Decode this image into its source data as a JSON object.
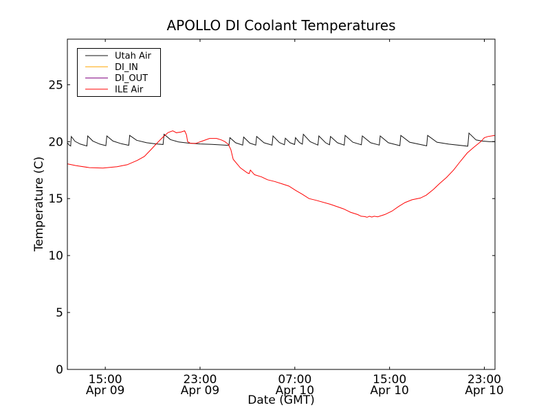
{
  "figure": {
    "background": "#ffffff",
    "axes_border_color": "#000000"
  },
  "chart_data": {
    "type": "line",
    "title": "APOLLO DI Coolant Temperatures",
    "xlabel": "Date (GMT)",
    "ylabel": "Temperature (C)",
    "grid": false,
    "legend_position": "upper left",
    "x_unit": "hours since Apr 09 00:00 GMT",
    "xlim": [
      11.8,
      47.9
    ],
    "ylim": [
      0,
      29
    ],
    "yticks": [
      0,
      5,
      10,
      15,
      20,
      25
    ],
    "xticks": [
      {
        "hour": 15,
        "time": "15:00",
        "date": "Apr 09"
      },
      {
        "hour": 23,
        "time": "23:00",
        "date": "Apr 09"
      },
      {
        "hour": 31,
        "time": "07:00",
        "date": "Apr 10"
      },
      {
        "hour": 39,
        "time": "15:00",
        "date": "Apr 10"
      },
      {
        "hour": 47,
        "time": "23:00",
        "date": "Apr 10"
      }
    ],
    "series": [
      {
        "name": "Utah Air",
        "color": "#111111",
        "points": [
          [
            11.8,
            19.9
          ],
          [
            11.95,
            19.7
          ],
          [
            12.08,
            19.62
          ],
          [
            12.13,
            20.45
          ],
          [
            12.45,
            20.02
          ],
          [
            12.9,
            19.78
          ],
          [
            13.45,
            19.62
          ],
          [
            13.52,
            20.5
          ],
          [
            13.95,
            20.05
          ],
          [
            14.55,
            19.78
          ],
          [
            15.05,
            19.65
          ],
          [
            15.13,
            20.5
          ],
          [
            15.65,
            20.05
          ],
          [
            16.35,
            19.82
          ],
          [
            16.98,
            19.68
          ],
          [
            17.06,
            20.55
          ],
          [
            17.65,
            20.12
          ],
          [
            18.5,
            19.9
          ],
          [
            19.3,
            19.8
          ],
          [
            19.88,
            19.75
          ],
          [
            19.96,
            20.65
          ],
          [
            20.5,
            20.18
          ],
          [
            21.2,
            19.97
          ],
          [
            22.0,
            19.87
          ],
          [
            23.0,
            19.8
          ],
          [
            24.0,
            19.76
          ],
          [
            25.0,
            19.7
          ],
          [
            25.44,
            19.67
          ],
          [
            25.52,
            20.35
          ],
          [
            26.0,
            19.9
          ],
          [
            26.6,
            19.7
          ],
          [
            26.68,
            20.4
          ],
          [
            27.2,
            19.87
          ],
          [
            27.7,
            19.7
          ],
          [
            27.78,
            20.45
          ],
          [
            28.4,
            19.9
          ],
          [
            29.08,
            19.7
          ],
          [
            29.16,
            20.5
          ],
          [
            29.7,
            19.92
          ],
          [
            30.12,
            19.73
          ],
          [
            30.2,
            20.3
          ],
          [
            30.6,
            19.9
          ],
          [
            30.98,
            19.75
          ],
          [
            31.06,
            20.35
          ],
          [
            31.4,
            19.92
          ],
          [
            31.64,
            19.78
          ],
          [
            31.72,
            20.65
          ],
          [
            32.3,
            20.0
          ],
          [
            32.95,
            19.7
          ],
          [
            33.03,
            20.5
          ],
          [
            33.6,
            19.9
          ],
          [
            33.93,
            19.73
          ],
          [
            34.01,
            20.45
          ],
          [
            34.6,
            19.9
          ],
          [
            35.17,
            19.7
          ],
          [
            35.25,
            20.55
          ],
          [
            35.9,
            19.95
          ],
          [
            36.62,
            19.72
          ],
          [
            36.7,
            20.5
          ],
          [
            37.4,
            19.9
          ],
          [
            38.13,
            19.7
          ],
          [
            38.21,
            20.5
          ],
          [
            38.9,
            19.9
          ],
          [
            39.87,
            19.65
          ],
          [
            39.95,
            20.55
          ],
          [
            40.7,
            19.95
          ],
          [
            42.13,
            19.63
          ],
          [
            42.21,
            20.55
          ],
          [
            43.0,
            19.95
          ],
          [
            44.0,
            19.78
          ],
          [
            45.6,
            19.6
          ],
          [
            45.7,
            20.75
          ],
          [
            46.3,
            20.15
          ],
          [
            46.8,
            20.05
          ],
          [
            47.4,
            20.0
          ],
          [
            47.87,
            20.0
          ]
        ]
      },
      {
        "name": "DI_IN",
        "color": "#ffa500",
        "points": []
      },
      {
        "name": "DI_OUT",
        "color": "#800080",
        "points": []
      },
      {
        "name": "ILE Air",
        "color": "#ff0000",
        "points": [
          [
            11.8,
            18.05
          ],
          [
            12.5,
            17.9
          ],
          [
            13.65,
            17.72
          ],
          [
            14.8,
            17.68
          ],
          [
            16.0,
            17.8
          ],
          [
            16.85,
            17.97
          ],
          [
            17.7,
            18.35
          ],
          [
            18.3,
            18.7
          ],
          [
            18.9,
            19.35
          ],
          [
            19.3,
            19.8
          ],
          [
            19.87,
            20.4
          ],
          [
            20.3,
            20.8
          ],
          [
            20.7,
            20.95
          ],
          [
            21.0,
            20.78
          ],
          [
            21.4,
            20.85
          ],
          [
            21.7,
            20.95
          ],
          [
            21.85,
            20.6
          ],
          [
            21.95,
            20.0
          ],
          [
            22.2,
            19.85
          ],
          [
            22.65,
            19.85
          ],
          [
            23.2,
            20.05
          ],
          [
            23.8,
            20.28
          ],
          [
            24.4,
            20.28
          ],
          [
            24.8,
            20.15
          ],
          [
            25.1,
            20.0
          ],
          [
            25.4,
            19.75
          ],
          [
            25.6,
            19.3
          ],
          [
            25.8,
            18.45
          ],
          [
            26.4,
            17.7
          ],
          [
            27.0,
            17.25
          ],
          [
            27.15,
            17.2
          ],
          [
            27.25,
            17.5
          ],
          [
            27.6,
            17.1
          ],
          [
            28.2,
            16.9
          ],
          [
            28.7,
            16.65
          ],
          [
            29.3,
            16.5
          ],
          [
            29.9,
            16.3
          ],
          [
            30.5,
            16.1
          ],
          [
            31.1,
            15.7
          ],
          [
            31.6,
            15.4
          ],
          [
            32.2,
            15.0
          ],
          [
            32.8,
            14.85
          ],
          [
            34.0,
            14.5
          ],
          [
            35.1,
            14.1
          ],
          [
            35.7,
            13.8
          ],
          [
            36.3,
            13.6
          ],
          [
            36.6,
            13.45
          ],
          [
            36.9,
            13.42
          ],
          [
            37.1,
            13.36
          ],
          [
            37.3,
            13.45
          ],
          [
            37.5,
            13.38
          ],
          [
            37.7,
            13.45
          ],
          [
            38.0,
            13.4
          ],
          [
            38.6,
            13.6
          ],
          [
            39.2,
            13.9
          ],
          [
            39.75,
            14.3
          ],
          [
            40.3,
            14.65
          ],
          [
            40.9,
            14.9
          ],
          [
            41.6,
            15.05
          ],
          [
            42.1,
            15.3
          ],
          [
            42.7,
            15.8
          ],
          [
            43.2,
            16.3
          ],
          [
            43.8,
            16.85
          ],
          [
            44.4,
            17.5
          ],
          [
            45.0,
            18.3
          ],
          [
            45.55,
            19.0
          ],
          [
            46.1,
            19.5
          ],
          [
            46.7,
            20.0
          ],
          [
            47.0,
            20.35
          ],
          [
            47.3,
            20.45
          ],
          [
            47.87,
            20.55
          ]
        ]
      }
    ]
  }
}
